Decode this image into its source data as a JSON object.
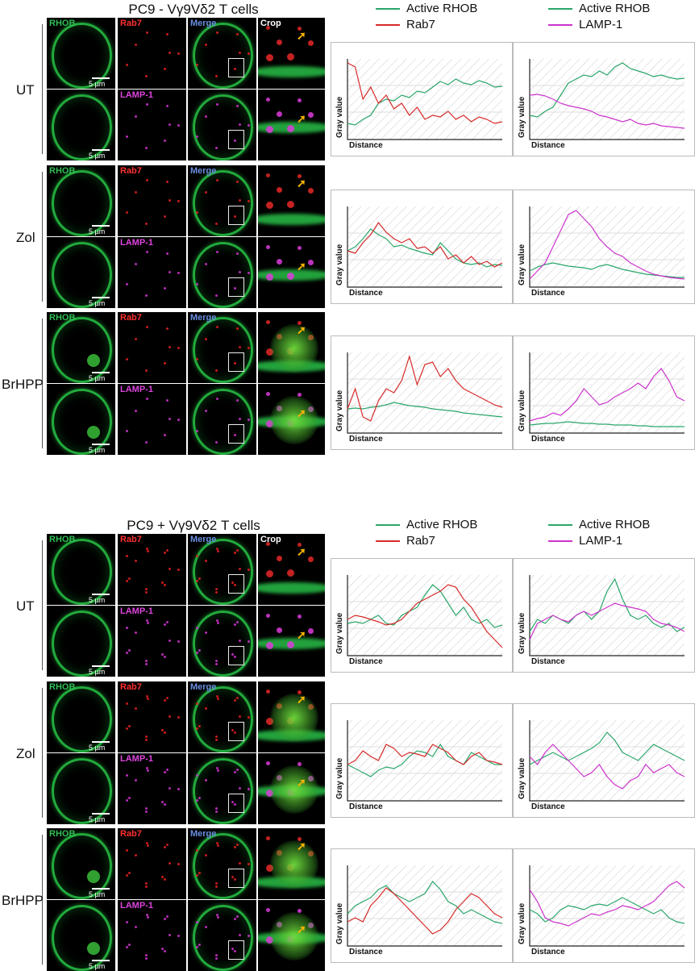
{
  "panels": [
    {
      "title": "PC9 - Vγ9Vδ2 T cells",
      "legend1": {
        "a": "Active RHOB",
        "b": "Rab7"
      },
      "legend2": {
        "a": "Active RHOB",
        "b": "LAMP-1"
      },
      "rows": [
        {
          "label": "UT"
        },
        {
          "label": "Zol"
        },
        {
          "label": "BrHPP"
        }
      ]
    },
    {
      "title": "PC9 + Vγ9Vδ2 T cells",
      "legend1": {
        "a": "Active RHOB",
        "b": "Rab7"
      },
      "legend2": {
        "a": "Active RHOB",
        "b": "LAMP-1"
      },
      "rows": [
        {
          "label": "UT"
        },
        {
          "label": "Zol"
        },
        {
          "label": "BrHPP"
        }
      ]
    }
  ],
  "channels": {
    "rhob": "RHOB",
    "rab7": "Rab7",
    "merge": "Merge",
    "crop": "Crop",
    "lamp1": "LAMP-1"
  },
  "scalebar": "5 µm",
  "axes": {
    "y": "Gray value",
    "x": "Distance"
  },
  "colors": {
    "rhob": "#2aa66a",
    "rab7": "#d62a2a",
    "lamp1": "#cc33cc",
    "rhob_label": "#2fbf55",
    "rab7_label": "#ff3030",
    "merge_label": "#6a8fe0",
    "lamp1_label": "#dd44dd"
  },
  "chart_data": [
    {
      "type": "line",
      "x": [
        0,
        1,
        2,
        3,
        4,
        5,
        6,
        7,
        8,
        9,
        10,
        11,
        12,
        13,
        14,
        15,
        16,
        17,
        18,
        19,
        20
      ],
      "series": [
        {
          "name": "Active RHOB",
          "values": [
            0.2,
            0.18,
            0.25,
            0.3,
            0.45,
            0.5,
            0.48,
            0.55,
            0.52,
            0.6,
            0.58,
            0.65,
            0.72,
            0.68,
            0.75,
            0.7,
            0.68,
            0.73,
            0.7,
            0.65,
            0.66
          ]
        },
        {
          "name": "Rab7",
          "values": [
            0.95,
            0.9,
            0.5,
            0.65,
            0.45,
            0.55,
            0.38,
            0.45,
            0.3,
            0.4,
            0.25,
            0.3,
            0.28,
            0.35,
            0.25,
            0.3,
            0.22,
            0.28,
            0.25,
            0.2,
            0.22
          ]
        }
      ]
    },
    {
      "type": "line",
      "x": [
        0,
        1,
        2,
        3,
        4,
        5,
        6,
        7,
        8,
        9,
        10,
        11,
        12,
        13,
        14,
        15,
        16,
        17,
        18,
        19,
        20
      ],
      "series": [
        {
          "name": "Active RHOB",
          "values": [
            0.3,
            0.28,
            0.35,
            0.4,
            0.55,
            0.7,
            0.75,
            0.8,
            0.78,
            0.85,
            0.8,
            0.9,
            0.95,
            0.88,
            0.85,
            0.82,
            0.78,
            0.8,
            0.77,
            0.75,
            0.76
          ]
        },
        {
          "name": "LAMP-1",
          "values": [
            0.55,
            0.56,
            0.54,
            0.5,
            0.45,
            0.42,
            0.4,
            0.38,
            0.35,
            0.3,
            0.28,
            0.25,
            0.22,
            0.25,
            0.2,
            0.18,
            0.2,
            0.17,
            0.16,
            0.15,
            0.14
          ]
        }
      ]
    },
    {
      "type": "line",
      "x": [
        0,
        1,
        2,
        3,
        4,
        5,
        6,
        7,
        8,
        9,
        10,
        11,
        12,
        13,
        14,
        15,
        16,
        17,
        18,
        19,
        20
      ],
      "series": [
        {
          "name": "Active RHOB",
          "values": [
            0.45,
            0.5,
            0.6,
            0.72,
            0.65,
            0.6,
            0.5,
            0.52,
            0.48,
            0.45,
            0.42,
            0.4,
            0.55,
            0.45,
            0.35,
            0.3,
            0.28,
            0.3,
            0.25,
            0.28,
            0.27
          ]
        },
        {
          "name": "Rab7",
          "values": [
            0.45,
            0.42,
            0.55,
            0.65,
            0.8,
            0.68,
            0.6,
            0.55,
            0.6,
            0.48,
            0.5,
            0.42,
            0.5,
            0.35,
            0.4,
            0.3,
            0.38,
            0.28,
            0.32,
            0.25,
            0.3
          ]
        }
      ]
    },
    {
      "type": "line",
      "x": [
        0,
        1,
        2,
        3,
        4,
        5,
        6,
        7,
        8,
        9,
        10,
        11,
        12,
        13,
        14,
        15,
        16,
        17,
        18,
        19,
        20
      ],
      "series": [
        {
          "name": "Active RHOB",
          "values": [
            0.2,
            0.25,
            0.28,
            0.3,
            0.28,
            0.26,
            0.25,
            0.24,
            0.22,
            0.26,
            0.28,
            0.25,
            0.22,
            0.2,
            0.18,
            0.16,
            0.15,
            0.14,
            0.13,
            0.12,
            0.12
          ]
        },
        {
          "name": "LAMP-1",
          "values": [
            0.1,
            0.2,
            0.3,
            0.5,
            0.7,
            0.9,
            0.95,
            0.85,
            0.75,
            0.6,
            0.5,
            0.42,
            0.38,
            0.3,
            0.25,
            0.2,
            0.16,
            0.14,
            0.12,
            0.11,
            0.1
          ]
        }
      ]
    },
    {
      "type": "line",
      "x": [
        0,
        1,
        2,
        3,
        4,
        5,
        6,
        7,
        8,
        9,
        10,
        11,
        12,
        13,
        14,
        15,
        16,
        17,
        18,
        19,
        20
      ],
      "series": [
        {
          "name": "Active RHOB",
          "values": [
            0.3,
            0.31,
            0.3,
            0.32,
            0.33,
            0.35,
            0.38,
            0.36,
            0.34,
            0.33,
            0.32,
            0.3,
            0.29,
            0.28,
            0.27,
            0.25,
            0.24,
            0.23,
            0.22,
            0.21,
            0.2
          ]
        },
        {
          "name": "Rab7",
          "values": [
            0.3,
            0.55,
            0.2,
            0.15,
            0.4,
            0.55,
            0.5,
            0.65,
            0.95,
            0.6,
            0.85,
            0.88,
            0.7,
            0.8,
            0.65,
            0.55,
            0.5,
            0.45,
            0.4,
            0.35,
            0.32
          ]
        }
      ]
    },
    {
      "type": "line",
      "x": [
        0,
        1,
        2,
        3,
        4,
        5,
        6,
        7,
        8,
        9,
        10,
        11,
        12,
        13,
        14,
        15,
        16,
        17,
        18,
        19,
        20
      ],
      "series": [
        {
          "name": "Active RHOB",
          "values": [
            0.1,
            0.11,
            0.12,
            0.12,
            0.13,
            0.14,
            0.13,
            0.12,
            0.12,
            0.11,
            0.11,
            0.1,
            0.1,
            0.1,
            0.09,
            0.09,
            0.08,
            0.08,
            0.08,
            0.08,
            0.08
          ]
        },
        {
          "name": "LAMP-1",
          "values": [
            0.15,
            0.18,
            0.2,
            0.25,
            0.22,
            0.3,
            0.4,
            0.55,
            0.45,
            0.35,
            0.38,
            0.45,
            0.5,
            0.55,
            0.62,
            0.55,
            0.7,
            0.8,
            0.65,
            0.45,
            0.4
          ]
        }
      ]
    },
    {
      "type": "line",
      "x": [
        0,
        1,
        2,
        3,
        4,
        5,
        6,
        7,
        8,
        9,
        10,
        11,
        12,
        13,
        14,
        15,
        16,
        17,
        18,
        19,
        20
      ],
      "series": [
        {
          "name": "Active RHOB",
          "values": [
            0.4,
            0.42,
            0.4,
            0.45,
            0.5,
            0.4,
            0.38,
            0.5,
            0.55,
            0.6,
            0.75,
            0.88,
            0.8,
            0.65,
            0.5,
            0.6,
            0.45,
            0.4,
            0.45,
            0.35,
            0.38
          ]
        },
        {
          "name": "Rab7",
          "values": [
            0.45,
            0.5,
            0.48,
            0.45,
            0.42,
            0.38,
            0.4,
            0.45,
            0.55,
            0.65,
            0.7,
            0.75,
            0.8,
            0.88,
            0.85,
            0.7,
            0.6,
            0.45,
            0.3,
            0.2,
            0.1
          ]
        }
      ]
    },
    {
      "type": "line",
      "x": [
        0,
        1,
        2,
        3,
        4,
        5,
        6,
        7,
        8,
        9,
        10,
        11,
        12,
        13,
        14,
        15,
        16,
        17,
        18,
        19,
        20
      ],
      "series": [
        {
          "name": "Active RHOB",
          "values": [
            0.3,
            0.45,
            0.4,
            0.5,
            0.45,
            0.4,
            0.5,
            0.55,
            0.45,
            0.55,
            0.8,
            0.95,
            0.7,
            0.5,
            0.45,
            0.5,
            0.4,
            0.35,
            0.4,
            0.3,
            0.35
          ]
        },
        {
          "name": "LAMP-1",
          "values": [
            0.2,
            0.4,
            0.45,
            0.5,
            0.45,
            0.42,
            0.5,
            0.55,
            0.5,
            0.55,
            0.6,
            0.65,
            0.62,
            0.6,
            0.58,
            0.55,
            0.45,
            0.4,
            0.38,
            0.35,
            0.3
          ]
        }
      ]
    },
    {
      "type": "line",
      "x": [
        0,
        1,
        2,
        3,
        4,
        5,
        6,
        7,
        8,
        9,
        10,
        11,
        12,
        13,
        14,
        15,
        16,
        17,
        18,
        19,
        20
      ],
      "series": [
        {
          "name": "Active RHOB",
          "values": [
            0.45,
            0.4,
            0.35,
            0.3,
            0.38,
            0.42,
            0.4,
            0.45,
            0.55,
            0.62,
            0.6,
            0.55,
            0.7,
            0.55,
            0.5,
            0.45,
            0.6,
            0.55,
            0.5,
            0.45,
            0.45
          ]
        },
        {
          "name": "Rab7",
          "values": [
            0.45,
            0.5,
            0.62,
            0.55,
            0.5,
            0.7,
            0.65,
            0.55,
            0.6,
            0.58,
            0.55,
            0.7,
            0.65,
            0.6,
            0.5,
            0.45,
            0.55,
            0.6,
            0.5,
            0.48,
            0.45
          ]
        }
      ]
    },
    {
      "type": "line",
      "x": [
        0,
        1,
        2,
        3,
        4,
        5,
        6,
        7,
        8,
        9,
        10,
        11,
        12,
        13,
        14,
        15,
        16,
        17,
        18,
        19,
        20
      ],
      "series": [
        {
          "name": "Active RHOB",
          "values": [
            0.45,
            0.5,
            0.55,
            0.6,
            0.55,
            0.5,
            0.55,
            0.6,
            0.65,
            0.72,
            0.85,
            0.75,
            0.6,
            0.55,
            0.5,
            0.6,
            0.7,
            0.65,
            0.6,
            0.55,
            0.5
          ]
        },
        {
          "name": "LAMP-1",
          "values": [
            0.55,
            0.45,
            0.6,
            0.7,
            0.6,
            0.5,
            0.4,
            0.3,
            0.35,
            0.45,
            0.3,
            0.2,
            0.15,
            0.25,
            0.3,
            0.45,
            0.35,
            0.4,
            0.45,
            0.35,
            0.3
          ]
        }
      ]
    },
    {
      "type": "line",
      "x": [
        0,
        1,
        2,
        3,
        4,
        5,
        6,
        7,
        8,
        9,
        10,
        11,
        12,
        13,
        14,
        15,
        16,
        17,
        18,
        19,
        20
      ],
      "series": [
        {
          "name": "Active RHOB",
          "values": [
            0.4,
            0.5,
            0.55,
            0.6,
            0.7,
            0.75,
            0.65,
            0.6,
            0.55,
            0.6,
            0.65,
            0.8,
            0.7,
            0.55,
            0.5,
            0.4,
            0.45,
            0.4,
            0.35,
            0.3,
            0.28
          ]
        },
        {
          "name": "Rab7",
          "values": [
            0.3,
            0.35,
            0.3,
            0.5,
            0.6,
            0.72,
            0.65,
            0.55,
            0.45,
            0.35,
            0.25,
            0.15,
            0.2,
            0.3,
            0.45,
            0.55,
            0.65,
            0.6,
            0.5,
            0.4,
            0.35
          ]
        }
      ]
    },
    {
      "type": "line",
      "x": [
        0,
        1,
        2,
        3,
        4,
        5,
        6,
        7,
        8,
        9,
        10,
        11,
        12,
        13,
        14,
        15,
        16,
        17,
        18,
        19,
        20
      ],
      "series": [
        {
          "name": "Active RHOB",
          "values": [
            0.45,
            0.4,
            0.3,
            0.35,
            0.45,
            0.5,
            0.48,
            0.45,
            0.5,
            0.52,
            0.5,
            0.55,
            0.6,
            0.55,
            0.5,
            0.45,
            0.4,
            0.45,
            0.35,
            0.3,
            0.28
          ]
        },
        {
          "name": "LAMP-1",
          "values": [
            0.7,
            0.55,
            0.35,
            0.3,
            0.28,
            0.25,
            0.3,
            0.35,
            0.4,
            0.38,
            0.42,
            0.45,
            0.5,
            0.48,
            0.45,
            0.5,
            0.55,
            0.65,
            0.75,
            0.8,
            0.72
          ]
        }
      ]
    }
  ]
}
